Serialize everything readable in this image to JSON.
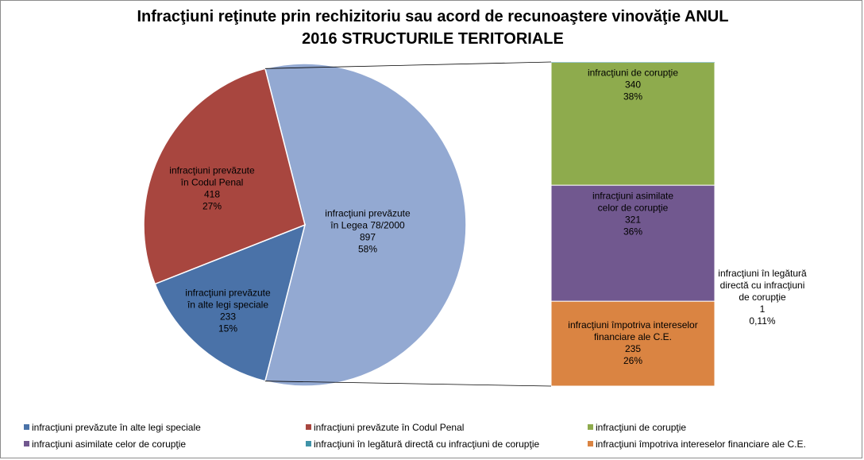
{
  "title_line1": "Infracţiuni reţinute prin rechizitoriu sau acord de recunoaştere vinovăţie ANUL",
  "title_line2": "2016  STRUCTURILE TERITORIALE",
  "colors": {
    "alte_legi": "#4a72a8",
    "cod_penal": "#a8463f",
    "legea": "#93a9d2",
    "coruptie": "#8eab4d",
    "asimilate": "#71588f",
    "legatura": "#3f93a8",
    "ce": "#da8442"
  },
  "chart_data": {
    "type": "pie",
    "subtype": "bar-of-pie",
    "pie": {
      "slices": [
        {
          "key": "legea",
          "label_lines": [
            "infracţiuni  prevăzute",
            "în Legea  78/2000"
          ],
          "value": 897,
          "percent": "58%"
        },
        {
          "key": "alte_legi",
          "label_lines": [
            "infracţiuni  prevăzute",
            "în alte legi speciale"
          ],
          "value": 233,
          "percent": "15%"
        },
        {
          "key": "cod_penal",
          "label_lines": [
            "infracţiuni  prevăzute",
            "în Codul Penal"
          ],
          "value": 418,
          "percent": "27%"
        }
      ]
    },
    "bar": {
      "segments": [
        {
          "key": "ce",
          "label_lines": [
            "infracţiuni  împotriva  intereselor",
            "financiare  ale C.E."
          ],
          "value": 235,
          "percent": "26%"
        },
        {
          "key": "asimilate",
          "label_lines": [
            "infracţiuni  asimilate",
            "celor de corupţie"
          ],
          "value": 321,
          "percent": "36%"
        },
        {
          "key": "coruptie",
          "label_lines": [
            "infracţiuni  de corupţie"
          ],
          "value": 340,
          "percent": "38%"
        },
        {
          "key": "legatura",
          "label_lines": [
            "infracţiuni  în legătură",
            "directă cu infracţiuni",
            "de corupţie"
          ],
          "value": 1,
          "percent": "0,11%"
        }
      ]
    },
    "legend": {
      "placement": "bottom",
      "rows": [
        [
          {
            "key": "alte_legi",
            "label": "infracţiuni prevăzute în alte legi speciale"
          },
          {
            "key": "cod_penal",
            "label": "infracţiuni prevăzute în Codul Penal"
          },
          {
            "key": "coruptie",
            "label": "infracţiuni de corupţie"
          }
        ],
        [
          {
            "key": "asimilate",
            "label": "infracţiuni asimilate celor de corupţie"
          },
          {
            "key": "legatura",
            "label": "infracţiuni în legătură directă cu infracţiuni de corupţie"
          },
          {
            "key": "ce",
            "label": "infracţiuni împotriva intereselor financiare ale C.E."
          }
        ]
      ]
    }
  }
}
